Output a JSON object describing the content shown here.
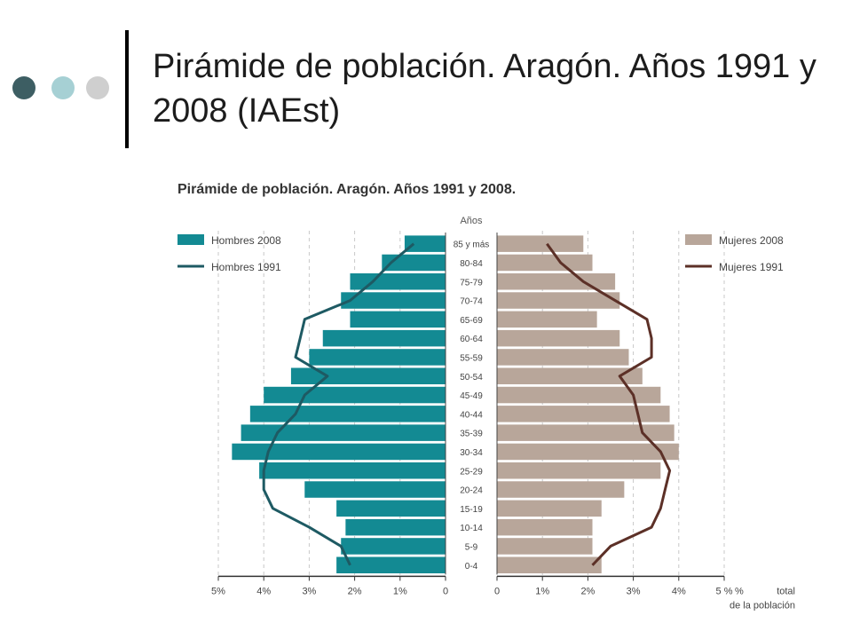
{
  "slide": {
    "title": "Pirámide de población. Aragón. Años 1991 y 2008 (IAEst)",
    "colors": {
      "dot_dark": "#3d5e63",
      "dot_light": "#a6d0d4",
      "dot_grey": "#cfcfcf"
    }
  },
  "chart_data": {
    "type": "bar",
    "orientation": "horizontal-pyramid",
    "title": "Pirámide de población. Aragón. Años 1991 y 2008.",
    "categories_label": "Años",
    "xlabel": "% total de la población",
    "categories": [
      "85 y más",
      "80-84",
      "75-79",
      "70-74",
      "65-69",
      "60-64",
      "55-59",
      "50-54",
      "45-49",
      "40-44",
      "35-39",
      "30-34",
      "25-29",
      "20-24",
      "15-19",
      "10-14",
      "5-9",
      "0-4"
    ],
    "x_ticks_left": [
      "5%",
      "4%",
      "3%",
      "2%",
      "1%",
      "0"
    ],
    "x_ticks_right": [
      "0",
      "1%",
      "2%",
      "3%",
      "4%",
      "5 %"
    ],
    "xlim": [
      0,
      5
    ],
    "grid": true,
    "legend_placement": "top",
    "series": [
      {
        "name": "Hombres 2008",
        "kind": "bar",
        "side": "left",
        "color": "#138a93",
        "values": [
          0.9,
          1.4,
          2.1,
          2.3,
          2.1,
          2.7,
          3.0,
          3.4,
          4.0,
          4.3,
          4.5,
          4.7,
          4.1,
          3.1,
          2.4,
          2.2,
          2.3,
          2.4
        ]
      },
      {
        "name": "Hombres 1991",
        "kind": "line",
        "side": "left",
        "color": "#1e5a63",
        "values": [
          0.7,
          1.2,
          1.6,
          2.1,
          3.1,
          3.2,
          3.3,
          2.6,
          3.1,
          3.3,
          3.7,
          3.9,
          4.0,
          4.0,
          3.8,
          3.0,
          2.3,
          2.1
        ]
      },
      {
        "name": "Mujeres 2008",
        "kind": "bar",
        "side": "right",
        "color": "#b8a69a",
        "values": [
          1.9,
          2.1,
          2.6,
          2.7,
          2.2,
          2.7,
          2.9,
          3.2,
          3.6,
          3.8,
          3.9,
          4.0,
          3.6,
          2.8,
          2.3,
          2.1,
          2.1,
          2.3
        ]
      },
      {
        "name": "Mujeres 1991",
        "kind": "line",
        "side": "right",
        "color": "#5c3027",
        "values": [
          1.1,
          1.4,
          1.9,
          2.6,
          3.3,
          3.4,
          3.4,
          2.7,
          3.0,
          3.1,
          3.2,
          3.6,
          3.8,
          3.7,
          3.6,
          3.4,
          2.5,
          2.1
        ]
      }
    ]
  }
}
